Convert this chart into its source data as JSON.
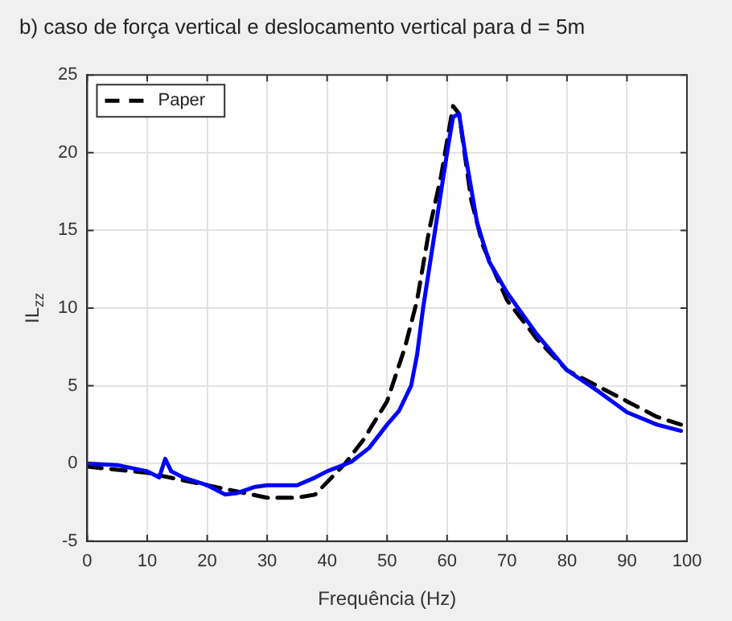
{
  "chart_data": {
    "type": "line",
    "title": "b)   caso de força vertical e deslocamento vertical para d = 5m",
    "xlabel": "Frequência (Hz)",
    "ylabel": "IL$_{zz}$",
    "xlim": [
      0,
      100
    ],
    "xticks": [
      0,
      10,
      20,
      30,
      40,
      50,
      60,
      70,
      80,
      90,
      100
    ],
    "ylim": [
      -5,
      25
    ],
    "yticks": [
      -5,
      0,
      5,
      10,
      15,
      20,
      25
    ],
    "grid": true,
    "legend": "top left",
    "marker": "none",
    "series": [
      {
        "color": "#0000ff",
        "line_style": "solid",
        "x": [
          0,
          5,
          10,
          12,
          13,
          14,
          16,
          20,
          23,
          25,
          28,
          30,
          35,
          38,
          40,
          44,
          47,
          50,
          52,
          54,
          55,
          56,
          58,
          60,
          61,
          62,
          63,
          65,
          67,
          70,
          75,
          80,
          85,
          90,
          95,
          99
        ],
        "values": [
          0,
          -0.1,
          -0.5,
          -0.9,
          0.3,
          -0.5,
          -0.9,
          -1.4,
          -2.0,
          -1.9,
          -1.5,
          -1.4,
          -1.4,
          -0.9,
          -0.5,
          0.1,
          1.0,
          2.5,
          3.4,
          5.0,
          7,
          10,
          15,
          20,
          22.3,
          22.5,
          20,
          15.5,
          13,
          11,
          8.3,
          6,
          4.7,
          3.3,
          2.5,
          2.1
        ]
      },
      {
        "name": "Paper",
        "color": "#000000",
        "line_style": "dashed",
        "x": [
          0,
          10,
          15,
          20,
          25,
          30,
          35,
          38,
          40,
          43,
          46,
          50,
          53,
          55,
          57,
          59,
          61,
          62,
          64,
          66,
          70,
          75,
          80,
          85,
          90,
          95,
          99
        ],
        "values": [
          -0.2,
          -0.6,
          -1.0,
          -1.4,
          -1.8,
          -2.2,
          -2.2,
          -2.0,
          -1.2,
          0,
          1.5,
          4,
          7.5,
          10.5,
          15,
          18.5,
          23,
          22.5,
          17,
          14,
          10.5,
          8,
          6,
          5,
          4,
          3,
          2.5
        ]
      }
    ]
  }
}
